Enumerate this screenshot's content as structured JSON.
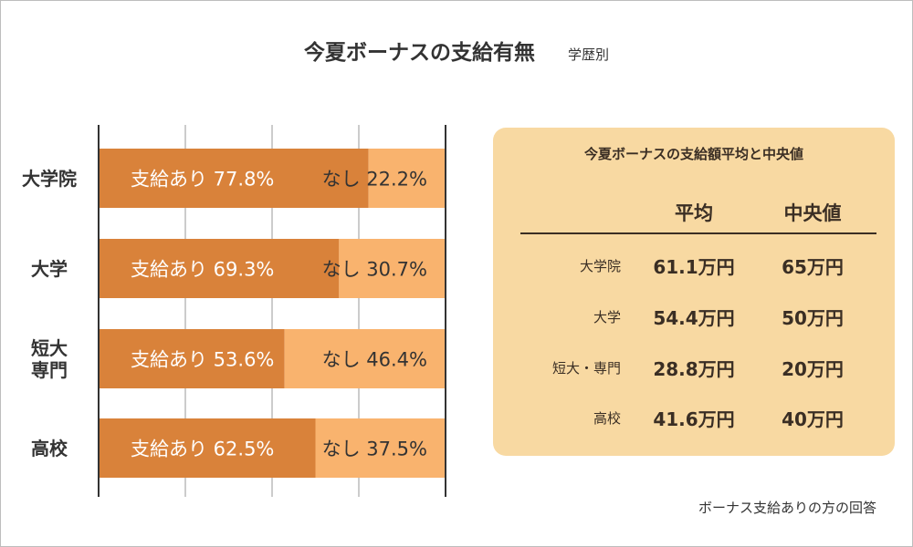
{
  "title": "今夏ボーナスの支給有無",
  "subtitle": "学歴別",
  "chart_data": {
    "type": "bar",
    "orientation": "horizontal-stacked",
    "categories": [
      "大学院",
      "大学",
      "短大\n専門",
      "高校"
    ],
    "category_lines": [
      [
        "大学院"
      ],
      [
        "大学"
      ],
      [
        "短大",
        "専門"
      ],
      [
        "高校"
      ]
    ],
    "series": [
      {
        "name": "支給あり",
        "values": [
          77.8,
          69.3,
          53.6,
          62.5
        ],
        "color": "#d9823a"
      },
      {
        "name": "なし",
        "values": [
          22.2,
          30.7,
          46.4,
          37.5
        ],
        "color": "#f9b36e"
      }
    ],
    "xlim": [
      0,
      100
    ],
    "gridlines": [
      25,
      50,
      75
    ],
    "grid": true
  },
  "panel": {
    "title": "今夏ボーナスの支給額平均と中央値",
    "headers": {
      "avg": "平均",
      "median": "中央値"
    },
    "rows": [
      {
        "label": "大学院",
        "avg": "61.1万円",
        "median": "65万円"
      },
      {
        "label": "大学",
        "avg": "54.4万円",
        "median": "50万円"
      },
      {
        "label": "短大・専門",
        "avg": "28.8万円",
        "median": "20万円"
      },
      {
        "label": "高校",
        "avg": "41.6万円",
        "median": "40万円"
      }
    ]
  },
  "note": "ボーナス支給ありの方の回答"
}
